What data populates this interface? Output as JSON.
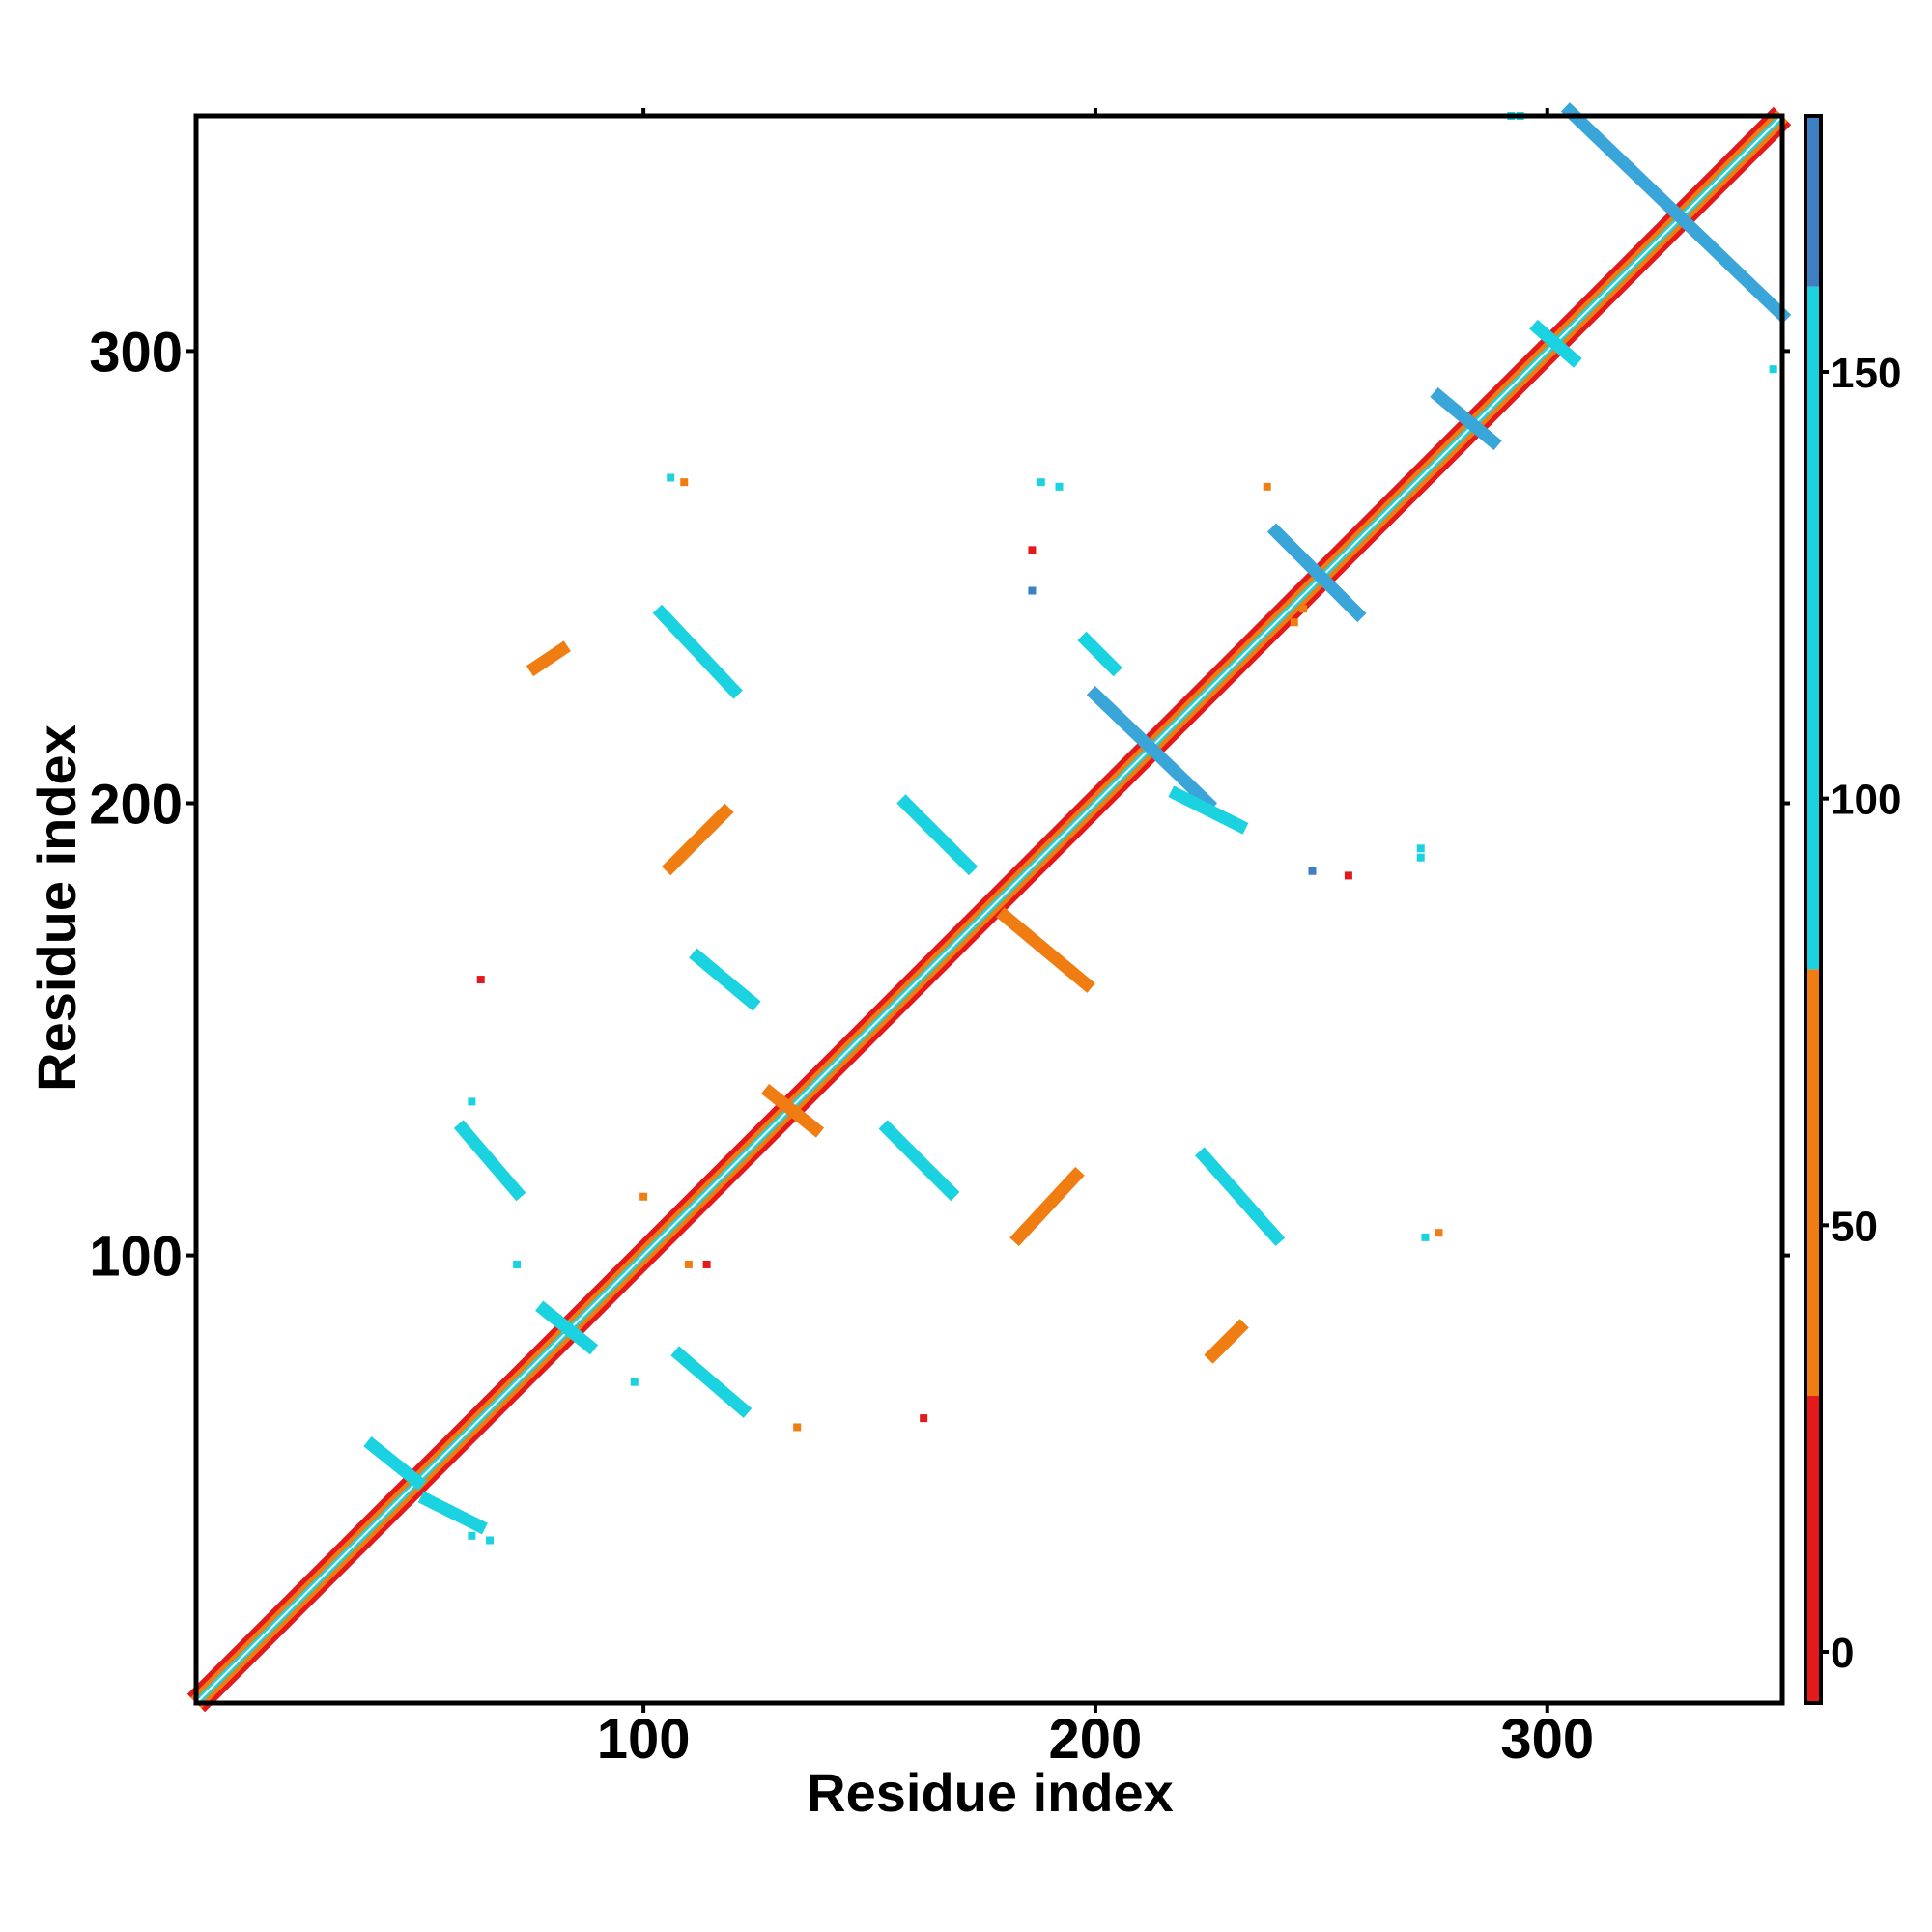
{
  "chart_data": {
    "type": "heatmap",
    "title": "",
    "xlabel": "Residue index",
    "ylabel": "Residue index",
    "xlim": [
      1,
      352
    ],
    "ylim": [
      1,
      352
    ],
    "x_ticks": [
      100,
      200,
      300
    ],
    "y_ticks": [
      100,
      200,
      300
    ],
    "colorbar": {
      "range": [
        -6,
        180
      ],
      "ticks": [
        0,
        50,
        100,
        150
      ],
      "segments": [
        {
          "from": -6,
          "to": 30,
          "color": "#e31a1c"
        },
        {
          "from": 30,
          "to": 80,
          "color": "#f07d12"
        },
        {
          "from": 80,
          "to": 160,
          "color": "#1ad2e0"
        },
        {
          "from": 160,
          "to": 180,
          "color": "#3d7fc0"
        }
      ]
    },
    "diagonal_band": {
      "from": 1,
      "to": 352,
      "colors": [
        "#e31a1c",
        "#f07d12",
        "#1ad2e0"
      ]
    },
    "segments": [
      {
        "x1": 305,
        "y1": 353,
        "x2": 352,
        "y2": 308,
        "color": "#3aa5d8"
      },
      {
        "x1": 240,
        "y1": 260,
        "x2": 258,
        "y2": 242,
        "color": "#3aa5d8"
      },
      {
        "x1": 200,
        "y1": 224,
        "x2": 225,
        "y2": 200,
        "color": "#3aa5d8"
      },
      {
        "x1": 276,
        "y1": 290,
        "x2": 288,
        "y2": 280,
        "color": "#3aa5d8"
      },
      {
        "x1": 298,
        "y1": 305,
        "x2": 306,
        "y2": 298,
        "color": "#1ad2e0"
      },
      {
        "x1": 60,
        "y1": 128,
        "x2": 72,
        "y2": 114,
        "color": "#1ad2e0"
      },
      {
        "x1": 112,
        "y1": 166,
        "x2": 124,
        "y2": 156,
        "color": "#1ad2e0"
      },
      {
        "x1": 108,
        "y1": 78,
        "x2": 122,
        "y2": 66,
        "color": "#1ad2e0"
      },
      {
        "x1": 154,
        "y1": 128,
        "x2": 168,
        "y2": 114,
        "color": "#1ad2e0"
      },
      {
        "x1": 183,
        "y1": 104,
        "x2": 196,
        "y2": 118,
        "color": "#f07d12"
      },
      {
        "x1": 106,
        "y1": 186,
        "x2": 118,
        "y2": 198,
        "color": "#f07d12"
      },
      {
        "x1": 104,
        "y1": 242,
        "x2": 120,
        "y2": 225,
        "color": "#1ad2e0"
      },
      {
        "x1": 224,
        "y1": 122,
        "x2": 240,
        "y2": 104,
        "color": "#1ad2e0"
      },
      {
        "x1": 180,
        "y1": 175,
        "x2": 198,
        "y2": 160,
        "color": "#f07d12"
      },
      {
        "x1": 158,
        "y1": 200,
        "x2": 172,
        "y2": 186,
        "color": "#1ad2e0"
      },
      {
        "x1": 76,
        "y1": 230,
        "x2": 82,
        "y2": 234,
        "color": "#f07d12"
      },
      {
        "x1": 226,
        "y1": 78,
        "x2": 232,
        "y2": 84,
        "color": "#f07d12"
      },
      {
        "x1": 198,
        "y1": 236,
        "x2": 204,
        "y2": 230,
        "color": "#1ad2e0"
      },
      {
        "x1": 218,
        "y1": 202,
        "x2": 232,
        "y2": 195,
        "color": "#1ad2e0"
      },
      {
        "x1": 40,
        "y1": 58,
        "x2": 50,
        "y2": 50,
        "color": "#1ad2e0"
      },
      {
        "x1": 52,
        "y1": 46,
        "x2": 64,
        "y2": 40,
        "color": "#1ad2e0"
      },
      {
        "x1": 78,
        "y1": 88,
        "x2": 88,
        "y2": 80,
        "color": "#1ad2e0"
      },
      {
        "x1": 128,
        "y1": 136,
        "x2": 138,
        "y2": 128,
        "color": "#f07d12"
      }
    ],
    "points": [
      {
        "x": 292,
        "y": 352,
        "color": "#1ad2e0"
      },
      {
        "x": 294,
        "y": 352,
        "color": "#1ad2e0"
      },
      {
        "x": 350,
        "y": 296,
        "color": "#1ad2e0"
      },
      {
        "x": 106,
        "y": 272,
        "color": "#1ad2e0"
      },
      {
        "x": 109,
        "y": 271,
        "color": "#f07d12"
      },
      {
        "x": 188,
        "y": 271,
        "color": "#1ad2e0"
      },
      {
        "x": 192,
        "y": 270,
        "color": "#1ad2e0"
      },
      {
        "x": 186,
        "y": 256,
        "color": "#e31a1c"
      },
      {
        "x": 186,
        "y": 247,
        "color": "#3d7fc0"
      },
      {
        "x": 238,
        "y": 270,
        "color": "#f07d12"
      },
      {
        "x": 246,
        "y": 243,
        "color": "#f07d12"
      },
      {
        "x": 244,
        "y": 240,
        "color": "#f07d12"
      },
      {
        "x": 64,
        "y": 161,
        "color": "#e31a1c"
      },
      {
        "x": 162,
        "y": 64,
        "color": "#e31a1c"
      },
      {
        "x": 72,
        "y": 98,
        "color": "#1ad2e0"
      },
      {
        "x": 98,
        "y": 72,
        "color": "#1ad2e0"
      },
      {
        "x": 62,
        "y": 134,
        "color": "#1ad2e0"
      },
      {
        "x": 134,
        "y": 62,
        "color": "#f07d12"
      },
      {
        "x": 272,
        "y": 190,
        "color": "#1ad2e0"
      },
      {
        "x": 272,
        "y": 188,
        "color": "#1ad2e0"
      },
      {
        "x": 273,
        "y": 104,
        "color": "#1ad2e0"
      },
      {
        "x": 276,
        "y": 105,
        "color": "#f07d12"
      },
      {
        "x": 256,
        "y": 184,
        "color": "#e31a1c"
      },
      {
        "x": 248,
        "y": 185,
        "color": "#3d7fc0"
      },
      {
        "x": 110,
        "y": 98,
        "color": "#f07d12"
      },
      {
        "x": 114,
        "y": 98,
        "color": "#e31a1c"
      },
      {
        "x": 100,
        "y": 113,
        "color": "#f07d12"
      },
      {
        "x": 62,
        "y": 38,
        "color": "#1ad2e0"
      },
      {
        "x": 66,
        "y": 37,
        "color": "#1ad2e0"
      }
    ]
  }
}
